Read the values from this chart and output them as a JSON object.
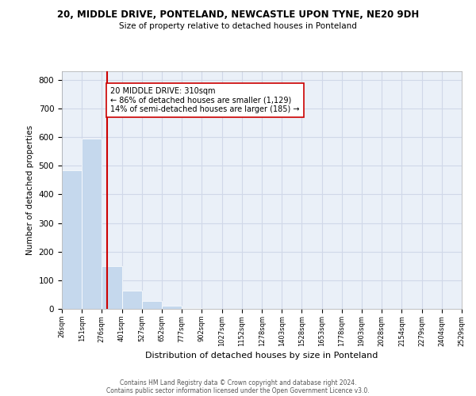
{
  "title1": "20, MIDDLE DRIVE, PONTELAND, NEWCASTLE UPON TYNE, NE20 9DH",
  "title2": "Size of property relative to detached houses in Ponteland",
  "xlabel": "Distribution of detached houses by size in Ponteland",
  "ylabel": "Number of detached properties",
  "bin_edges": [
    26,
    151,
    276,
    401,
    527,
    652,
    777,
    902,
    1027,
    1152,
    1278,
    1403,
    1528,
    1653,
    1778,
    1903,
    2028,
    2154,
    2279,
    2404,
    2529
  ],
  "bin_labels": [
    "26sqm",
    "151sqm",
    "276sqm",
    "401sqm",
    "527sqm",
    "652sqm",
    "777sqm",
    "902sqm",
    "1027sqm",
    "1152sqm",
    "1278sqm",
    "1403sqm",
    "1528sqm",
    "1653sqm",
    "1778sqm",
    "1903sqm",
    "2028sqm",
    "2154sqm",
    "2279sqm",
    "2404sqm",
    "2529sqm"
  ],
  "bar_heights": [
    485,
    595,
    150,
    65,
    27,
    10,
    2,
    0,
    0,
    0,
    0,
    0,
    0,
    0,
    0,
    0,
    0,
    0,
    0,
    0
  ],
  "bar_color": "#c5d8ed",
  "bar_edge_color": "#ffffff",
  "grid_color": "#d0d8e8",
  "bg_color": "#eaf0f8",
  "vline_x": 310,
  "vline_color": "#cc0000",
  "annotation_text": "20 MIDDLE DRIVE: 310sqm\n← 86% of detached houses are smaller (1,129)\n14% of semi-detached houses are larger (185) →",
  "annotation_box_color": "#ffffff",
  "annotation_box_edge": "#cc0000",
  "ylim": [
    0,
    830
  ],
  "yticks": [
    0,
    100,
    200,
    300,
    400,
    500,
    600,
    700,
    800
  ],
  "footnote1": "Contains HM Land Registry data © Crown copyright and database right 2024.",
  "footnote2": "Contains public sector information licensed under the Open Government Licence v3.0."
}
